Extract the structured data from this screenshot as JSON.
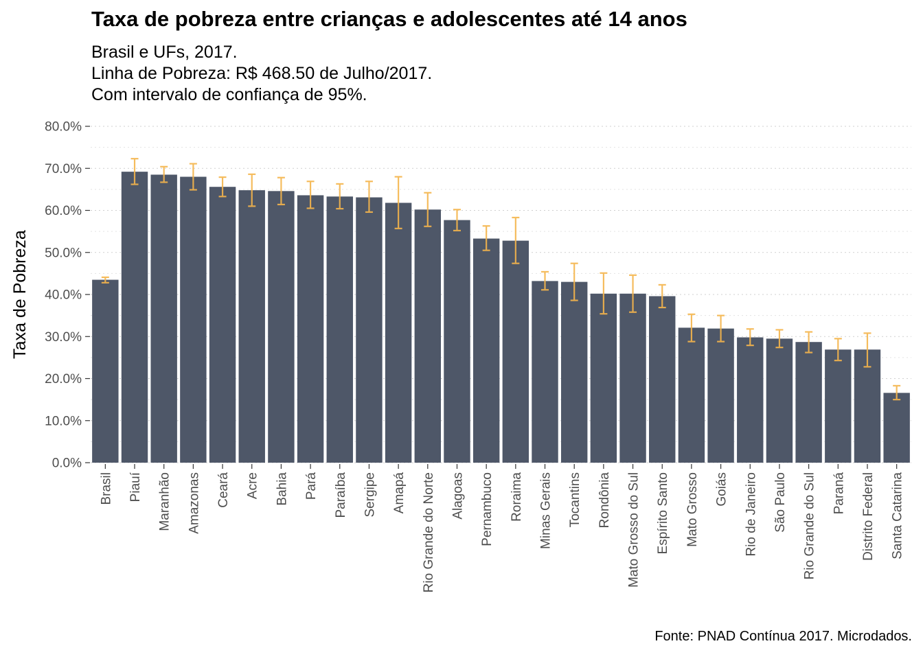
{
  "chart_data": {
    "type": "bar",
    "title": "Taxa de pobreza entre crianças e adolescentes até 14 anos",
    "subtitle": [
      "Brasil e UFs, 2017.",
      "Linha de Pobreza: R$ 468.50 de Julho/2017.",
      "Com intervalo de confiança de 95%."
    ],
    "caption": "Fonte: PNAD Contínua 2017. Microdados.",
    "xlabel": "",
    "ylabel": "Taxa de Pobreza",
    "ylim": [
      0,
      80
    ],
    "yticks": [
      0,
      10,
      20,
      30,
      40,
      50,
      60,
      70,
      80
    ],
    "ytick_labels": [
      "0.0%",
      "10.0%",
      "20.0%",
      "30.0%",
      "40.0%",
      "50.0%",
      "60.0%",
      "70.0%",
      "80.0%"
    ],
    "grid": "horizontal dotted",
    "bar_color": "#4e5768",
    "errorbar_color": "#f5b54c",
    "categories": [
      "Brasil",
      "Piauí",
      "Maranhão",
      "Amazonas",
      "Ceará",
      "Acre",
      "Bahia",
      "Pará",
      "Paraíba",
      "Sergipe",
      "Amapá",
      "Rio Grande do Norte",
      "Alagoas",
      "Pernambuco",
      "Roraima",
      "Minas Gerais",
      "Tocantins",
      "Rondônia",
      "Mato Grosso do Sul",
      "Espírito Santo",
      "Mato Grosso",
      "Goiás",
      "Rio de Janeiro",
      "São Paulo",
      "Rio Grande do Sul",
      "Paraná",
      "Distrito Federal",
      "Santa Catarina"
    ],
    "values": [
      43.5,
      69.2,
      68.5,
      68.0,
      65.6,
      64.8,
      64.6,
      63.6,
      63.3,
      63.1,
      61.8,
      60.2,
      57.7,
      53.3,
      52.8,
      43.2,
      43.0,
      40.2,
      40.2,
      39.6,
      32.1,
      31.9,
      29.8,
      29.5,
      28.7,
      26.9,
      26.9,
      16.6
    ],
    "ci_lower": [
      42.8,
      66.2,
      66.7,
      64.9,
      63.3,
      61.0,
      61.4,
      60.5,
      60.4,
      59.6,
      55.7,
      56.2,
      55.2,
      50.5,
      47.4,
      41.1,
      38.6,
      35.4,
      35.8,
      36.9,
      28.8,
      28.8,
      27.9,
      27.4,
      26.2,
      24.3,
      22.8,
      15.0
    ],
    "ci_upper": [
      44.1,
      72.3,
      70.4,
      71.1,
      67.9,
      68.6,
      67.8,
      66.9,
      66.3,
      66.9,
      68.0,
      64.2,
      60.2,
      56.3,
      58.3,
      45.4,
      47.4,
      45.1,
      44.6,
      42.3,
      35.3,
      35.0,
      31.8,
      31.6,
      31.1,
      29.5,
      30.8,
      18.3
    ]
  }
}
